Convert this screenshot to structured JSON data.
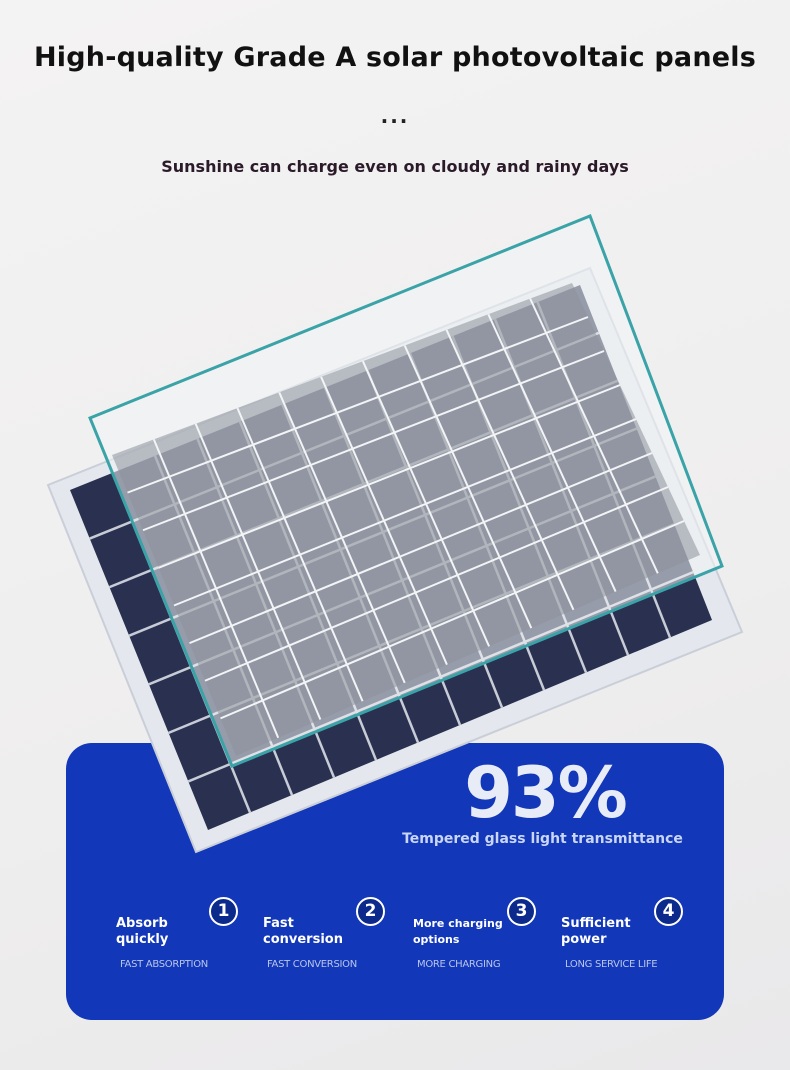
{
  "header": {
    "title": "High-quality Grade A solar photovoltaic panels",
    "dots": "...",
    "subtitle": "Sunshine can charge even on cloudy and rainy days"
  },
  "highlight": {
    "value": "93%",
    "label": "Tempered glass light transmittance"
  },
  "features": [
    {
      "number": "1",
      "name": "Absorb quickly",
      "sub": "FAST ABSORPTION"
    },
    {
      "number": "2",
      "name": "Fast conversion",
      "sub": "FAST CONVERSION"
    },
    {
      "number": "3",
      "name": "More charging options",
      "sub": "MORE CHARGING"
    },
    {
      "number": "4",
      "name": "Sufficient power",
      "sub": "LONG SERVICE LIFE"
    }
  ],
  "colors": {
    "card": "#1237b9",
    "glass_edge": "#3aa3a8",
    "cell": "#2a3150"
  }
}
